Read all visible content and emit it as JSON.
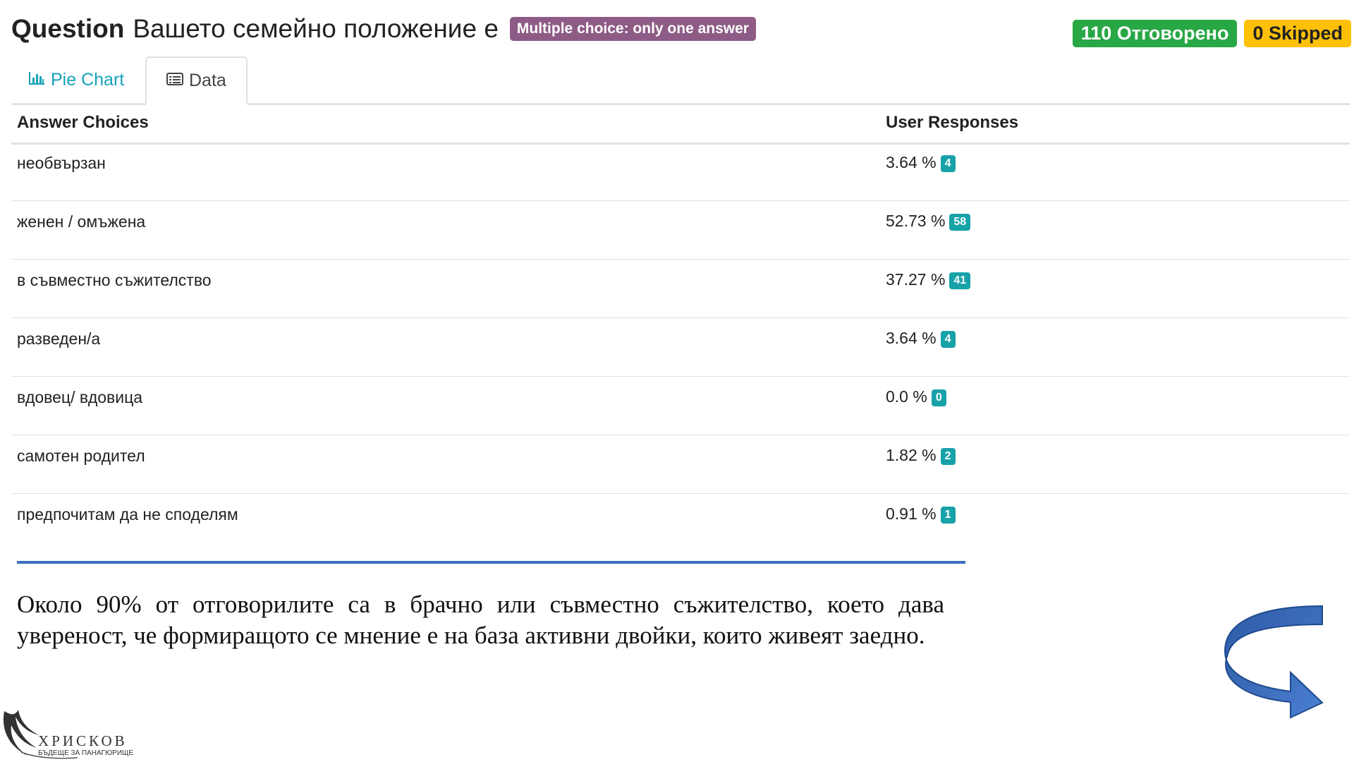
{
  "question": {
    "label": "Question",
    "title": "Вашето семейно положение е",
    "type_badge": "Multiple choice: only one answer"
  },
  "stats": {
    "answered": "110 Отговорено",
    "skipped": "0 Skipped"
  },
  "tabs": [
    {
      "label": "Pie Chart",
      "icon": "bar-chart-icon",
      "active": false
    },
    {
      "label": "Data",
      "icon": "table-list-icon",
      "active": true
    }
  ],
  "table": {
    "headers": {
      "choices": "Answer Choices",
      "responses": "User Responses"
    },
    "rows": [
      {
        "choice": "необвързан",
        "percent": "3.64 %",
        "count": "4"
      },
      {
        "choice": "женен / омъжена",
        "percent": "52.73 %",
        "count": "58"
      },
      {
        "choice": "в съвместно съжителство",
        "percent": "37.27 %",
        "count": "41"
      },
      {
        "choice": "разведен/а",
        "percent": "3.64 %",
        "count": "4"
      },
      {
        "choice": "вдовец/ вдовица",
        "percent": "0.0 %",
        "count": "0"
      },
      {
        "choice": "самотен родител",
        "percent": "1.82 %",
        "count": "2"
      },
      {
        "choice": "предпочитам да не споделям",
        "percent": "0.91 %",
        "count": "1"
      }
    ]
  },
  "summary": "Около 90% от отговорилите са в брачно или съвместно съжителство, което дава увереност, че формиращото се мнение е на база активни двойки, които живеят заедно.",
  "logo": {
    "name": "ХРИСКОВ",
    "tagline": "БЪДЕЩЕ ЗА ПАНАГЮРИЩЕ"
  },
  "colors": {
    "type_badge": "#8e5b86",
    "answered": "#28a745",
    "skipped": "#ffc107",
    "count_badge": "#17a2a8",
    "accent_line": "#3d6fc0",
    "arrow": "#3e6fc3"
  }
}
